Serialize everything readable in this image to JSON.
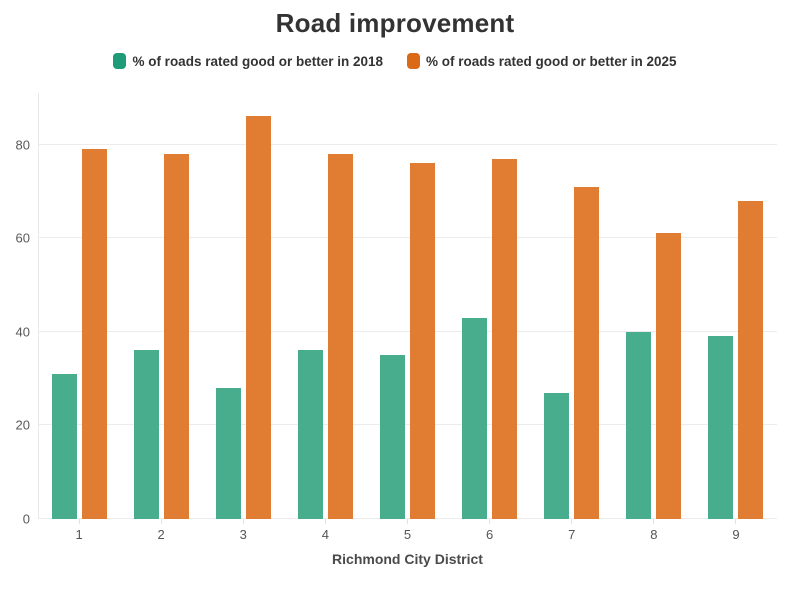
{
  "chart_data": {
    "type": "bar",
    "title": "Road improvement",
    "categories": [
      "1",
      "2",
      "3",
      "4",
      "5",
      "6",
      "7",
      "8",
      "9"
    ],
    "series": [
      {
        "name": "% of roads rated good or better in 2018",
        "color": "#47AD8C",
        "swatch_color": "#1E9B78",
        "values": [
          31,
          36,
          28,
          36,
          35,
          43,
          27,
          40,
          39
        ]
      },
      {
        "name": "% of roads rated good or better in 2025",
        "color": "#E07D33",
        "swatch_color": "#DB6A16",
        "values": [
          79,
          78,
          86,
          78,
          76,
          77,
          71,
          61,
          68
        ]
      }
    ],
    "xlabel": "Richmond City District",
    "ylabel": "",
    "yticks": [
      0,
      20,
      40,
      60,
      80
    ],
    "ylim": [
      0,
      91
    ],
    "grid": true,
    "legend_position": "top"
  },
  "colors": {
    "title_text": "#333333",
    "tick_text": "#595959",
    "axis_title_text": "#4A4A4A",
    "gridline": "#ECECEC",
    "background": "#FFFFFF"
  }
}
